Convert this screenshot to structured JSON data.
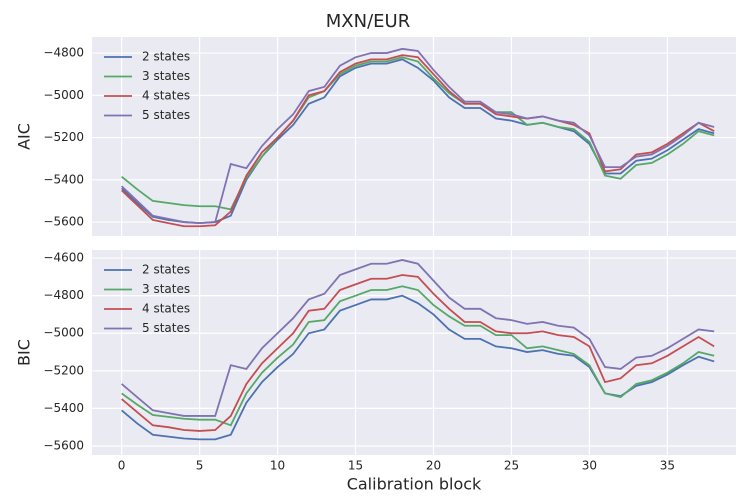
{
  "title": "MXN/EUR",
  "x_label": "Calibration block",
  "chart_data": [
    {
      "type": "line",
      "y_label": "AIC",
      "grid": true,
      "legend": "upper left",
      "x": [
        0,
        1,
        2,
        3,
        4,
        5,
        6,
        7,
        8,
        9,
        10,
        11,
        12,
        13,
        14,
        15,
        16,
        17,
        18,
        19,
        20,
        21,
        22,
        23,
        24,
        25,
        26,
        27,
        28,
        29,
        30,
        31,
        32,
        33,
        34,
        35,
        36,
        37,
        38
      ],
      "xlim": [
        -1.9,
        39.4
      ],
      "xticks": [
        0,
        5,
        10,
        15,
        20,
        25,
        30,
        35
      ],
      "ylim": [
        -5666,
        -4724
      ],
      "yticks": [
        {
          "value": -5600,
          "label": "−5600"
        },
        {
          "value": -5400,
          "label": "−5400"
        },
        {
          "value": -5200,
          "label": "−5200"
        },
        {
          "value": -5000,
          "label": "−5000"
        },
        {
          "value": -4800,
          "label": "−4800"
        }
      ],
      "series": [
        {
          "name": "2 states",
          "color": "#4c72b0",
          "values": [
            -5440,
            -5510,
            -5575,
            -5590,
            -5600,
            -5605,
            -5600,
            -5570,
            -5400,
            -5290,
            -5210,
            -5140,
            -5040,
            -5010,
            -4910,
            -4870,
            -4850,
            -4850,
            -4830,
            -4870,
            -4930,
            -5010,
            -5060,
            -5060,
            -5110,
            -5120,
            -5140,
            -5130,
            -5150,
            -5170,
            -5230,
            -5370,
            -5370,
            -5310,
            -5300,
            -5260,
            -5210,
            -5160,
            -5180
          ]
        },
        {
          "name": "3 states",
          "color": "#55a868",
          "values": [
            -5385,
            -5445,
            -5500,
            -5510,
            -5520,
            -5525,
            -5525,
            -5540,
            -5390,
            -5290,
            -5200,
            -5120,
            -5010,
            -4980,
            -4900,
            -4860,
            -4840,
            -4840,
            -4820,
            -4840,
            -4920,
            -4990,
            -5040,
            -5040,
            -5080,
            -5080,
            -5140,
            -5130,
            -5150,
            -5160,
            -5220,
            -5380,
            -5395,
            -5330,
            -5320,
            -5280,
            -5230,
            -5170,
            -5190
          ]
        },
        {
          "name": "4 states",
          "color": "#c44e52",
          "values": [
            -5450,
            -5520,
            -5590,
            -5605,
            -5620,
            -5620,
            -5615,
            -5550,
            -5380,
            -5270,
            -5200,
            -5120,
            -5000,
            -4980,
            -4890,
            -4850,
            -4830,
            -4830,
            -4810,
            -4820,
            -4900,
            -4980,
            -5040,
            -5040,
            -5090,
            -5100,
            -5110,
            -5100,
            -5120,
            -5140,
            -5180,
            -5360,
            -5350,
            -5280,
            -5270,
            -5230,
            -5180,
            -5130,
            -5170
          ]
        },
        {
          "name": "5 states",
          "color": "#8172b2",
          "values": [
            -5430,
            -5500,
            -5570,
            -5585,
            -5600,
            -5605,
            -5600,
            -5325,
            -5345,
            -5240,
            -5160,
            -5090,
            -4980,
            -4960,
            -4860,
            -4820,
            -4800,
            -4800,
            -4780,
            -4790,
            -4880,
            -4960,
            -5030,
            -5030,
            -5080,
            -5090,
            -5110,
            -5100,
            -5120,
            -5130,
            -5190,
            -5340,
            -5340,
            -5290,
            -5280,
            -5240,
            -5190,
            -5130,
            -5150
          ]
        }
      ]
    },
    {
      "type": "line",
      "y_label": "BIC",
      "grid": true,
      "legend": "upper left",
      "x": [
        0,
        1,
        2,
        3,
        4,
        5,
        6,
        7,
        8,
        9,
        10,
        11,
        12,
        13,
        14,
        15,
        16,
        17,
        18,
        19,
        20,
        21,
        22,
        23,
        24,
        25,
        26,
        27,
        28,
        29,
        30,
        31,
        32,
        33,
        34,
        35,
        36,
        37,
        38
      ],
      "xlim": [
        -1.9,
        39.4
      ],
      "xticks": [
        0,
        5,
        10,
        15,
        20,
        25,
        30,
        35
      ],
      "ylim": [
        -5648,
        -4557
      ],
      "yticks": [
        {
          "value": -5600,
          "label": "−5600"
        },
        {
          "value": -5400,
          "label": "−5400"
        },
        {
          "value": -5200,
          "label": "−5200"
        },
        {
          "value": -5000,
          "label": "−5000"
        },
        {
          "value": -4800,
          "label": "−4800"
        },
        {
          "value": -4600,
          "label": "−4600"
        }
      ],
      "series": [
        {
          "name": "2 states",
          "color": "#4c72b0",
          "values": [
            -5410,
            -5480,
            -5540,
            -5550,
            -5560,
            -5565,
            -5565,
            -5540,
            -5370,
            -5260,
            -5180,
            -5110,
            -5000,
            -4980,
            -4880,
            -4850,
            -4820,
            -4820,
            -4800,
            -4840,
            -4900,
            -4980,
            -5030,
            -5030,
            -5070,
            -5080,
            -5100,
            -5090,
            -5110,
            -5120,
            -5180,
            -5320,
            -5335,
            -5280,
            -5260,
            -5220,
            -5170,
            -5125,
            -5150
          ]
        },
        {
          "name": "3 states",
          "color": "#55a868",
          "values": [
            -5320,
            -5380,
            -5435,
            -5445,
            -5455,
            -5460,
            -5460,
            -5490,
            -5320,
            -5210,
            -5130,
            -5060,
            -4940,
            -4930,
            -4830,
            -4800,
            -4770,
            -4770,
            -4750,
            -4770,
            -4850,
            -4910,
            -4960,
            -4960,
            -5010,
            -5010,
            -5080,
            -5070,
            -5090,
            -5110,
            -5170,
            -5320,
            -5340,
            -5270,
            -5250,
            -5210,
            -5160,
            -5100,
            -5120
          ]
        },
        {
          "name": "4 states",
          "color": "#c44e52",
          "values": [
            -5350,
            -5420,
            -5490,
            -5500,
            -5515,
            -5520,
            -5515,
            -5440,
            -5270,
            -5160,
            -5080,
            -5000,
            -4880,
            -4870,
            -4770,
            -4740,
            -4710,
            -4710,
            -4690,
            -4700,
            -4790,
            -4870,
            -4940,
            -4940,
            -4990,
            -5000,
            -5000,
            -4990,
            -5010,
            -5020,
            -5070,
            -5260,
            -5240,
            -5170,
            -5160,
            -5120,
            -5070,
            -5020,
            -5070
          ]
        },
        {
          "name": "5 states",
          "color": "#8172b2",
          "values": [
            -5270,
            -5340,
            -5410,
            -5425,
            -5440,
            -5440,
            -5440,
            -5170,
            -5190,
            -5080,
            -5000,
            -4920,
            -4820,
            -4790,
            -4690,
            -4660,
            -4630,
            -4630,
            -4610,
            -4630,
            -4720,
            -4810,
            -4870,
            -4870,
            -4920,
            -4930,
            -4950,
            -4940,
            -4960,
            -4970,
            -5030,
            -5180,
            -5190,
            -5130,
            -5120,
            -5080,
            -5030,
            -4980,
            -4990
          ]
        }
      ]
    }
  ]
}
